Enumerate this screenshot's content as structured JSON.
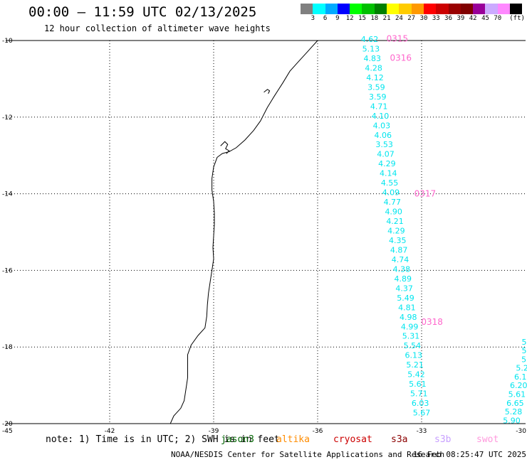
{
  "header": {
    "title": "00:00 – 11:59 UTC 02/13/2025",
    "subtitle": "12 hour collection of altimeter wave heights"
  },
  "colorbar": {
    "colors": [
      "#808080",
      "#00ffff",
      "#00aaff",
      "#0000ff",
      "#00ff00",
      "#00c000",
      "#008000",
      "#ffff00",
      "#ffcc00",
      "#ff9900",
      "#ff0000",
      "#cc0000",
      "#990000",
      "#800000",
      "#990099",
      "#ccaaff",
      "#ff88ff",
      "#000000"
    ],
    "labels": [
      "3",
      "6",
      "9",
      "12",
      "15",
      "18",
      "21",
      "24",
      "27",
      "30",
      "33",
      "36",
      "39",
      "42",
      "45",
      "70"
    ],
    "unit": "(ft)"
  },
  "map_data": {
    "lat_ticks": [
      "-10",
      "-12",
      "-14",
      "-16",
      "-18",
      "-20"
    ],
    "lon_ticks": [
      "-45",
      "-42",
      "-39",
      "-36",
      "-33",
      "-30"
    ],
    "coast_color": "#000000",
    "grid_color": "#000000",
    "swh_color": "#00e5ee",
    "label_color": "#ff66cc",
    "track_a_values": [
      "4.62",
      "5.13",
      "4.83",
      "4.28",
      "4.12",
      "3.59",
      "3.59",
      "4.71",
      "4.10",
      "4.03",
      "4.06",
      "3.53",
      "4.07",
      "4.29",
      "4.14",
      "4.55",
      "4.09",
      "4.77",
      "4.90",
      "4.21",
      "4.29",
      "4.35",
      "4.87",
      "4.74",
      "4.38",
      "4.89",
      "4.37",
      "5.49",
      "4.81",
      "4.98",
      "4.99",
      "5.31",
      "5.54",
      "6.13",
      "5.21",
      "5.42",
      "5.61",
      "5.71",
      "6.03",
      "5.67"
    ],
    "track_b_values": [
      "5",
      "5",
      "5",
      "5.2",
      "6.1",
      "6.20",
      "5.61",
      "6.65",
      "5.28",
      "5.90"
    ],
    "pass_labels": [
      "0315",
      "0316",
      "0317",
      "0318"
    ]
  },
  "footer": {
    "note": "note: 1) Time is in UTC; 2) SWH is in feet",
    "missions": [
      {
        "name": "jason3",
        "color": "#006400"
      },
      {
        "name": "altika",
        "color": "#ff8c00"
      },
      {
        "name": "cryosat",
        "color": "#cc0000"
      },
      {
        "name": "s3a",
        "color": "#8b0000"
      },
      {
        "name": "s3b",
        "color": "#c8a0ff"
      },
      {
        "name": "swot",
        "color": "#ff99dd"
      }
    ],
    "credit": "NOAA/NESDIS Center for Satellite Applications and Research",
    "generated": "16 Feb 08:25:47 UTC 2025"
  }
}
